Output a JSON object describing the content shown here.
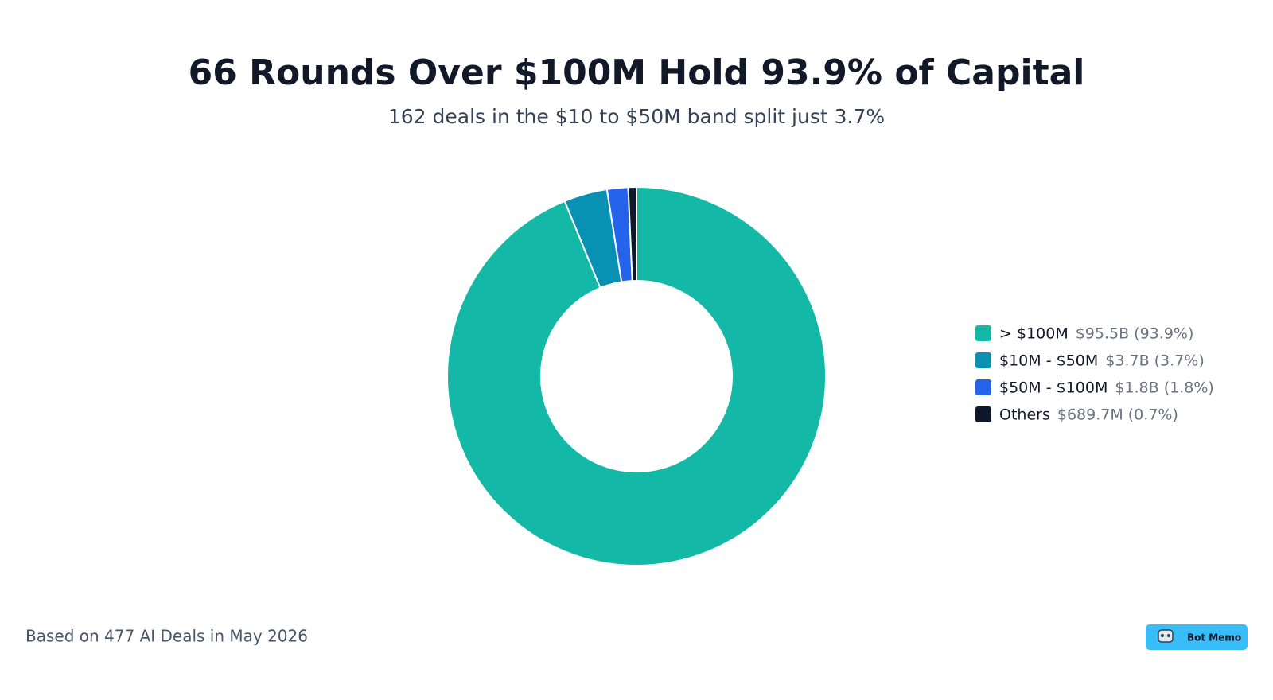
{
  "chart_data": {
    "type": "donut",
    "title": "66 Rounds Over $100M Hold 93.9% of Capital",
    "subtitle": "162 deals in the $10 to $50M band split just 3.7%",
    "categories": [
      "> $100M",
      "$10M - $50M",
      "$50M - $100M",
      "Others"
    ],
    "values": [
      93.9,
      3.7,
      1.8,
      0.7
    ],
    "value_labels": [
      "$95.5B (93.9%)",
      "$3.7B (3.7%)",
      "$1.8B (1.8%)",
      "$689.7M (0.7%)"
    ],
    "colors": [
      "#14b8a6",
      "#0891b2",
      "#2563eb",
      "#0f172a"
    ],
    "legend": "right",
    "footnote": "Based on 477 AI Deals in May 2026"
  },
  "brand": "Bot Memo"
}
